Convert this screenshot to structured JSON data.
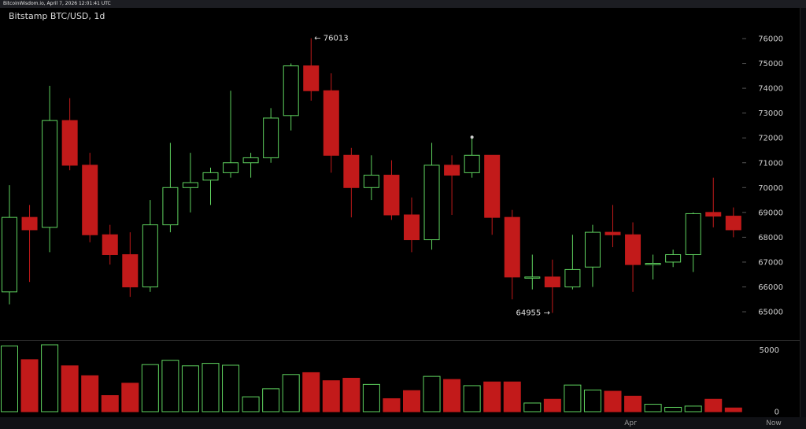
{
  "watermark": "BitcoinWisdom.io, April 7, 2026 12:01:41 UTC",
  "chart_data": {
    "type": "candlestick",
    "title": "Bitstamp BTC/USD, 1d",
    "price_axis": {
      "ticks": [
        65000,
        66000,
        67000,
        68000,
        69000,
        70000,
        71000,
        72000,
        73000,
        74000,
        75000,
        76000
      ],
      "range": [
        64000,
        77000
      ]
    },
    "volume_axis": {
      "ticks": [
        0,
        5000
      ],
      "range": [
        0,
        6000
      ]
    },
    "x_labels": [
      "Apr",
      "Now"
    ],
    "annotations": [
      {
        "label": "← 76013",
        "price": 76013
      },
      {
        "label": "64955 →",
        "price": 64955
      }
    ],
    "colors": {
      "up": "#5fd35f",
      "down": "#c21a1a",
      "background": "#000000"
    },
    "candles": [
      {
        "open": 65800,
        "high": 70100,
        "low": 65300,
        "close": 68800,
        "volume": 5300
      },
      {
        "open": 68800,
        "high": 69300,
        "low": 66200,
        "close": 68300,
        "volume": 4200
      },
      {
        "open": 68400,
        "high": 74100,
        "low": 67400,
        "close": 72700,
        "volume": 5400
      },
      {
        "open": 72700,
        "high": 73600,
        "low": 70700,
        "close": 70900,
        "volume": 3700
      },
      {
        "open": 70900,
        "high": 71400,
        "low": 67800,
        "close": 68100,
        "volume": 2900
      },
      {
        "open": 68100,
        "high": 68500,
        "low": 66900,
        "close": 67300,
        "volume": 1300
      },
      {
        "open": 67300,
        "high": 68200,
        "low": 65600,
        "close": 66000,
        "volume": 2300
      },
      {
        "open": 66000,
        "high": 69500,
        "low": 65800,
        "close": 68500,
        "volume": 3800
      },
      {
        "open": 68500,
        "high": 71800,
        "low": 68200,
        "close": 70000,
        "volume": 4150
      },
      {
        "open": 70000,
        "high": 71400,
        "low": 69000,
        "close": 70200,
        "volume": 3700
      },
      {
        "open": 70300,
        "high": 70800,
        "low": 69300,
        "close": 70600,
        "volume": 3900
      },
      {
        "open": 70600,
        "high": 73900,
        "low": 70400,
        "close": 71000,
        "volume": 3750
      },
      {
        "open": 71000,
        "high": 71400,
        "low": 70400,
        "close": 71200,
        "volume": 1200
      },
      {
        "open": 71200,
        "high": 73200,
        "low": 71000,
        "close": 72800,
        "volume": 1850
      },
      {
        "open": 72900,
        "high": 75000,
        "low": 72300,
        "close": 74900,
        "volume": 3000
      },
      {
        "open": 74900,
        "high": 76013,
        "low": 73500,
        "close": 73900,
        "volume": 3150
      },
      {
        "open": 73900,
        "high": 74600,
        "low": 70600,
        "close": 71300,
        "volume": 2500
      },
      {
        "open": 71300,
        "high": 71600,
        "low": 68800,
        "close": 70000,
        "volume": 2700
      },
      {
        "open": 70000,
        "high": 71300,
        "low": 69500,
        "close": 70500,
        "volume": 2200
      },
      {
        "open": 70500,
        "high": 71100,
        "low": 68700,
        "close": 68900,
        "volume": 1050
      },
      {
        "open": 68900,
        "high": 69600,
        "low": 67400,
        "close": 67900,
        "volume": 1700
      },
      {
        "open": 67900,
        "high": 71800,
        "low": 67500,
        "close": 70900,
        "volume": 2850
      },
      {
        "open": 70900,
        "high": 71300,
        "low": 68900,
        "close": 70500,
        "volume": 2600
      },
      {
        "open": 70600,
        "high": 72000,
        "low": 70400,
        "close": 71300,
        "volume": 2100
      },
      {
        "open": 71300,
        "high": 71300,
        "low": 68100,
        "close": 68800,
        "volume": 2400
      },
      {
        "open": 68800,
        "high": 69100,
        "low": 65500,
        "close": 66400,
        "volume": 2400
      },
      {
        "open": 66400,
        "high": 67300,
        "low": 65900,
        "close": 66400,
        "volume": 700
      },
      {
        "open": 66400,
        "high": 67100,
        "low": 64955,
        "close": 66000,
        "volume": 1000
      },
      {
        "open": 66000,
        "high": 68100,
        "low": 65900,
        "close": 66700,
        "volume": 2150
      },
      {
        "open": 66800,
        "high": 68500,
        "low": 66000,
        "close": 68200,
        "volume": 1750
      },
      {
        "open": 68200,
        "high": 69300,
        "low": 67600,
        "close": 68100,
        "volume": 1650
      },
      {
        "open": 68100,
        "high": 68600,
        "low": 65800,
        "close": 66900,
        "volume": 1250
      },
      {
        "open": 66900,
        "high": 67300,
        "low": 66300,
        "close": 66950,
        "volume": 600
      },
      {
        "open": 67000,
        "high": 67500,
        "low": 66800,
        "close": 67300,
        "volume": 350
      },
      {
        "open": 67300,
        "high": 69000,
        "low": 66600,
        "close": 68950,
        "volume": 450
      },
      {
        "open": 69000,
        "high": 70400,
        "low": 68400,
        "close": 68850,
        "volume": 1000
      },
      {
        "open": 68850,
        "high": 69200,
        "low": 68000,
        "close": 68300,
        "volume": 300
      }
    ]
  }
}
